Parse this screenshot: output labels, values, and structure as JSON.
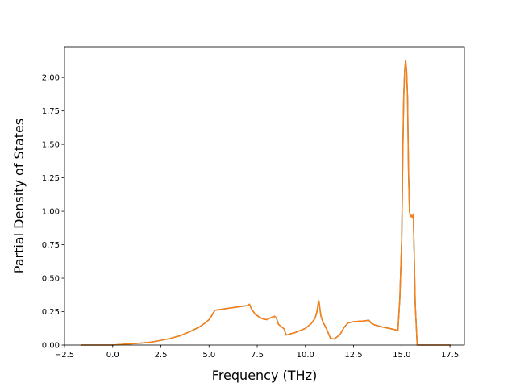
{
  "chart_data": {
    "type": "line",
    "title": "",
    "xlabel": "Frequency (THz)",
    "ylabel": "Partial Density of States",
    "xlim": [
      -2.5,
      18.25
    ],
    "ylim": [
      0.0,
      2.23
    ],
    "xticks": [
      -2.5,
      0.0,
      2.5,
      5.0,
      7.5,
      10.0,
      12.5,
      15.0,
      17.5
    ],
    "xtick_labels": [
      "−2.5",
      "0.0",
      "2.5",
      "5.0",
      "7.5",
      "10.0",
      "12.5",
      "15.0",
      "17.5"
    ],
    "yticks": [
      0.0,
      0.25,
      0.5,
      0.75,
      1.0,
      1.25,
      1.5,
      1.75,
      2.0
    ],
    "ytick_labels": [
      "0.00",
      "0.25",
      "0.50",
      "0.75",
      "1.00",
      "1.25",
      "1.50",
      "1.75",
      "2.00"
    ],
    "grid": false,
    "legend": "none",
    "series": [
      {
        "color": "#1f77b4",
        "x": [
          -1.6,
          -1.0,
          0.0,
          0.5,
          1.0,
          1.5,
          2.0,
          2.5,
          3.0,
          3.5,
          4.0,
          4.5,
          4.8,
          5.0,
          5.1,
          5.2,
          5.3,
          6.0,
          7.0,
          7.1,
          7.2,
          7.4,
          7.6,
          7.8,
          8.0,
          8.2,
          8.4,
          8.5,
          8.6,
          8.9,
          9.0,
          9.5,
          10.0,
          10.3,
          10.5,
          10.6,
          10.65,
          10.7,
          10.8,
          10.9,
          11.1,
          11.3,
          11.5,
          11.8,
          12.0,
          12.2,
          12.5,
          13.0,
          13.3,
          13.4,
          13.6,
          14.0,
          14.5,
          14.8,
          14.9,
          15.0,
          15.05,
          15.1,
          15.15,
          15.2,
          15.25,
          15.3,
          15.35,
          15.4,
          15.45,
          15.5,
          15.55,
          15.6,
          15.7,
          15.8,
          16.0,
          17.0,
          17.5
        ],
        "y": [
          0.0,
          0.0,
          0.0,
          0.005,
          0.01,
          0.015,
          0.022,
          0.035,
          0.05,
          0.07,
          0.1,
          0.135,
          0.165,
          0.19,
          0.21,
          0.235,
          0.26,
          0.275,
          0.295,
          0.305,
          0.27,
          0.23,
          0.21,
          0.195,
          0.19,
          0.205,
          0.215,
          0.2,
          0.155,
          0.12,
          0.075,
          0.095,
          0.125,
          0.16,
          0.2,
          0.25,
          0.3,
          0.33,
          0.22,
          0.175,
          0.12,
          0.05,
          0.045,
          0.08,
          0.13,
          0.165,
          0.175,
          0.18,
          0.185,
          0.165,
          0.15,
          0.135,
          0.12,
          0.11,
          0.35,
          0.8,
          1.4,
          1.85,
          2.05,
          2.13,
          2.05,
          1.85,
          1.3,
          1.0,
          0.96,
          0.97,
          0.95,
          0.98,
          0.3,
          0.0,
          0.0,
          0.0,
          0.0
        ]
      },
      {
        "color": "#ff7f0e",
        "x": [
          -1.6,
          -1.0,
          0.0,
          0.5,
          1.0,
          1.5,
          2.0,
          2.5,
          3.0,
          3.5,
          4.0,
          4.5,
          4.8,
          5.0,
          5.1,
          5.2,
          5.3,
          6.0,
          7.0,
          7.1,
          7.2,
          7.4,
          7.6,
          7.8,
          8.0,
          8.2,
          8.4,
          8.5,
          8.6,
          8.9,
          9.0,
          9.5,
          10.0,
          10.3,
          10.5,
          10.6,
          10.65,
          10.7,
          10.8,
          10.9,
          11.1,
          11.3,
          11.5,
          11.8,
          12.0,
          12.2,
          12.5,
          13.0,
          13.3,
          13.4,
          13.6,
          14.0,
          14.5,
          14.8,
          14.9,
          15.0,
          15.05,
          15.1,
          15.15,
          15.2,
          15.25,
          15.3,
          15.35,
          15.4,
          15.45,
          15.5,
          15.55,
          15.6,
          15.7,
          15.8,
          16.0,
          17.0,
          17.5
        ],
        "y": [
          0.0,
          0.0,
          0.0,
          0.005,
          0.01,
          0.015,
          0.022,
          0.035,
          0.05,
          0.07,
          0.1,
          0.135,
          0.165,
          0.19,
          0.21,
          0.235,
          0.26,
          0.275,
          0.295,
          0.305,
          0.27,
          0.23,
          0.21,
          0.195,
          0.19,
          0.205,
          0.215,
          0.2,
          0.155,
          0.12,
          0.075,
          0.095,
          0.125,
          0.16,
          0.2,
          0.25,
          0.3,
          0.33,
          0.22,
          0.175,
          0.12,
          0.05,
          0.045,
          0.08,
          0.13,
          0.165,
          0.175,
          0.18,
          0.185,
          0.165,
          0.15,
          0.135,
          0.12,
          0.11,
          0.35,
          0.8,
          1.4,
          1.85,
          2.05,
          2.13,
          2.05,
          1.85,
          1.3,
          1.0,
          0.96,
          0.97,
          0.95,
          0.98,
          0.3,
          0.0,
          0.0,
          0.0,
          0.0
        ]
      }
    ]
  }
}
